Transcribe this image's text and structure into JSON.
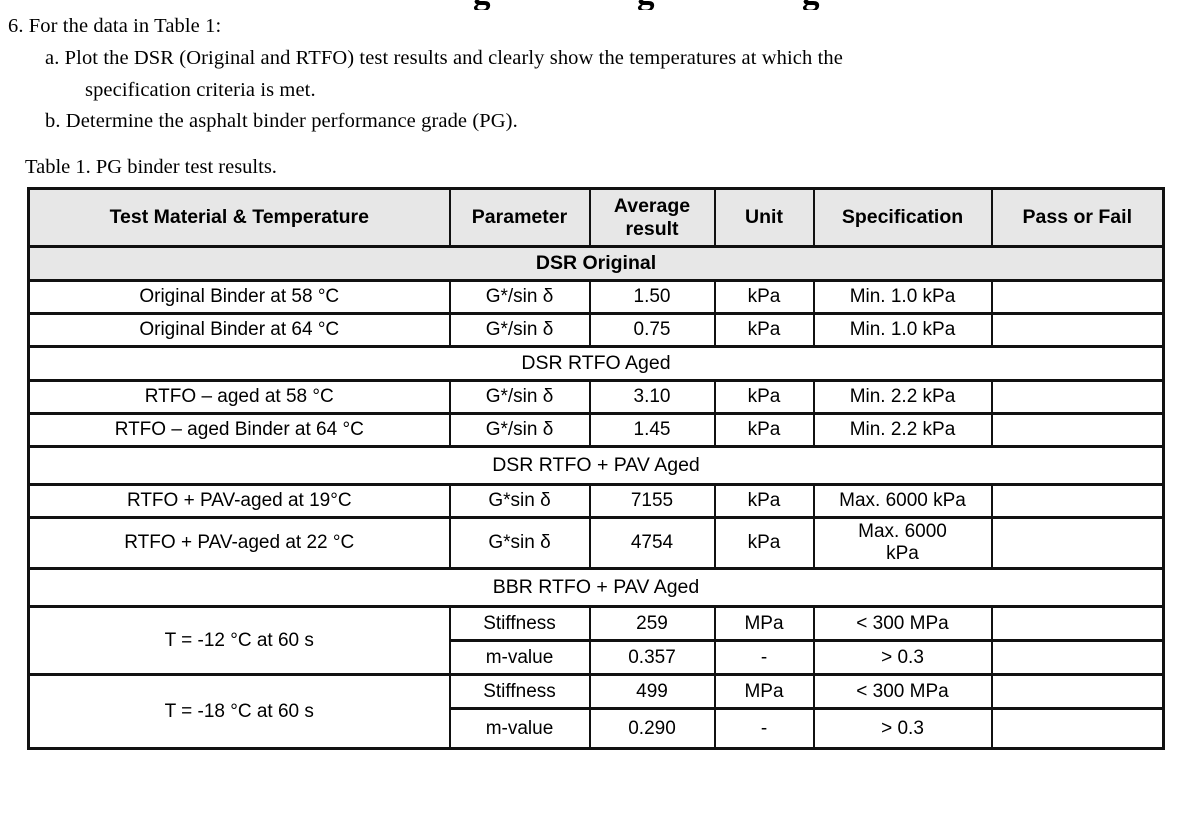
{
  "cutoff_heading_fragments": [
    "g",
    "g",
    "g"
  ],
  "question": {
    "intro": "6. For the data in Table 1:",
    "item_a_line1": "a. Plot the DSR (Original and RTFO) test results and clearly show the temperatures at which the",
    "item_a_line2": "specification criteria is met.",
    "item_b": "b. Determine the asphalt binder performance grade (PG)."
  },
  "table": {
    "caption": "Table 1. PG binder test results.",
    "headers": [
      "Test Material & Temperature",
      "Parameter",
      "Average result",
      "Unit",
      "Specification",
      "Pass or Fail"
    ],
    "colors": {
      "header_background": "#e7e7e7",
      "border": "#111111"
    },
    "rows": [
      {
        "type": "section",
        "label": "DSR Original",
        "emphasis": true
      },
      {
        "type": "data",
        "material": "Original Binder at 58 °C",
        "parameter": "G*/sin δ",
        "result": "1.50",
        "unit": "kPa",
        "spec": "Min. 1.0 kPa",
        "pass": ""
      },
      {
        "type": "data",
        "material": "Original Binder at 64 °C",
        "parameter": "G*/sin δ",
        "result": "0.75",
        "unit": "kPa",
        "spec": "Min. 1.0 kPa",
        "pass": ""
      },
      {
        "type": "section",
        "label": "DSR RTFO Aged"
      },
      {
        "type": "data",
        "material": "RTFO – aged at 58 °C",
        "parameter": "G*/sin δ",
        "result": "3.10",
        "unit": "kPa",
        "spec": "Min. 2.2 kPa",
        "pass": ""
      },
      {
        "type": "data",
        "material": "RTFO – aged Binder at 64 °C",
        "parameter": "G*/sin δ",
        "result": "1.45",
        "unit": "kPa",
        "spec": "Min. 2.2 kPa",
        "pass": ""
      },
      {
        "type": "section",
        "label": "DSR RTFO + PAV Aged",
        "wide": true
      },
      {
        "type": "data",
        "material": "RTFO + PAV-aged at 19°C",
        "parameter": "G*sin δ",
        "result": "7155",
        "unit": "kPa",
        "spec": "Max. 6000 kPa",
        "pass": ""
      },
      {
        "type": "data",
        "material": "RTFO + PAV-aged at 22 °C",
        "parameter": "G*sin δ",
        "result": "4754",
        "unit": "kPa",
        "spec": "Max. 6000 kPa",
        "pass": "",
        "tall": true
      },
      {
        "type": "section",
        "label": "BBR RTFO + PAV Aged",
        "wide": true
      },
      {
        "type": "group",
        "material": "T = -12 °C at 60 s",
        "subrows": [
          {
            "parameter": "Stiffness",
            "result": "259",
            "unit": "MPa",
            "spec": "< 300 MPa",
            "pass": ""
          },
          {
            "parameter": "m-value",
            "result": "0.357",
            "unit": "-",
            "spec": "> 0.3",
            "pass": ""
          }
        ]
      },
      {
        "type": "group",
        "material": "T = -18 °C at 60 s",
        "subrows": [
          {
            "parameter": "Stiffness",
            "result": "499",
            "unit": "MPa",
            "spec": "< 300 MPa",
            "pass": ""
          },
          {
            "parameter": "m-value",
            "result": "0.290",
            "unit": "-",
            "spec": "> 0.3",
            "pass": "",
            "last": true
          }
        ]
      }
    ]
  }
}
